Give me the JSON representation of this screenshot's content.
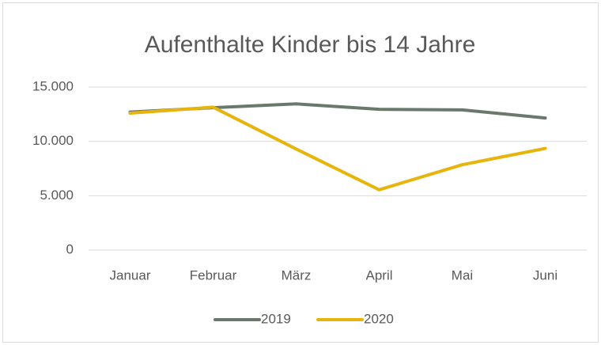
{
  "chart_data": {
    "type": "line",
    "title": "Aufenthalte Kinder bis 14 Jahre",
    "categories": [
      "Januar",
      "Februar",
      "März",
      "April",
      "Mai",
      "Juni"
    ],
    "series": [
      {
        "name": "2019",
        "color": "#6b786c",
        "values": [
          12700,
          13100,
          13450,
          12950,
          12900,
          12150
        ]
      },
      {
        "name": "2020",
        "color": "#e6b40a",
        "values": [
          12600,
          13150,
          9300,
          5550,
          7850,
          9350
        ]
      }
    ],
    "ylim": [
      0,
      15000
    ],
    "yticks": [
      0,
      {
        "value": 5000,
        "label": "5.000"
      },
      {
        "value": 10000,
        "label": "10.000"
      },
      {
        "value": 15000,
        "label": "15.000"
      }
    ],
    "grid": true,
    "legend": "bottom"
  }
}
